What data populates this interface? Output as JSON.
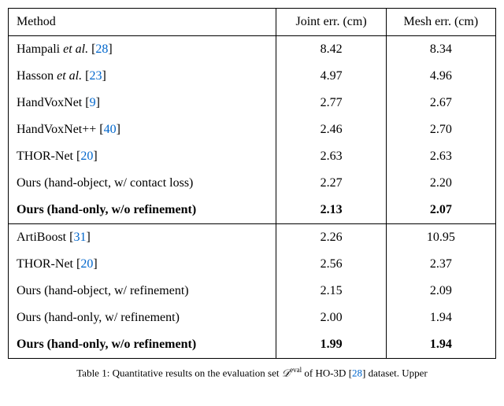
{
  "columns": {
    "method": "Method",
    "joint": "Joint err. (cm)",
    "mesh": "Mesh err. (cm)"
  },
  "group1": [
    {
      "name": "Hampali ",
      "ital": "et al.",
      "cite": "28",
      "joint": "8.42",
      "mesh": "8.34",
      "bold": false
    },
    {
      "name": "Hasson ",
      "ital": "et al.",
      "cite": "23",
      "joint": "4.97",
      "mesh": "4.96",
      "bold": false
    },
    {
      "name": "HandVoxNet ",
      "ital": "",
      "cite": "9",
      "joint": "2.77",
      "mesh": "2.67",
      "bold": false
    },
    {
      "name": "HandVoxNet++ ",
      "ital": "",
      "cite": "40",
      "joint": "2.46",
      "mesh": "2.70",
      "bold": false
    },
    {
      "name": "THOR-Net ",
      "ital": "",
      "cite": "20",
      "joint": "2.63",
      "mesh": "2.63",
      "bold": false
    },
    {
      "name": "Ours (hand-object, w/ contact loss)",
      "ital": "",
      "cite": "",
      "joint": "2.27",
      "mesh": "2.20",
      "bold": false
    },
    {
      "name": "Ours (hand-only, w/o refinement)",
      "ital": "",
      "cite": "",
      "joint": "2.13",
      "mesh": "2.07",
      "bold": true
    }
  ],
  "group2": [
    {
      "name": "ArtiBoost ",
      "ital": "",
      "cite": "31",
      "joint": "2.26",
      "mesh": "10.95",
      "bold": false
    },
    {
      "name": "THOR-Net ",
      "ital": "",
      "cite": "20",
      "joint": "2.56",
      "mesh": "2.37",
      "bold": false
    },
    {
      "name": "Ours (hand-object, w/ refinement)",
      "ital": "",
      "cite": "",
      "joint": "2.15",
      "mesh": "2.09",
      "bold": false
    },
    {
      "name": "Ours (hand-only, w/ refinement)",
      "ital": "",
      "cite": "",
      "joint": "2.00",
      "mesh": "1.94",
      "bold": false
    },
    {
      "name": "Ours (hand-only, w/o refinement)",
      "ital": "",
      "cite": "",
      "joint": "1.99",
      "mesh": "1.94",
      "bold": true
    }
  ],
  "caption": {
    "label": "Table 1:",
    "pre": "Quantitative results on the evaluation set ",
    "sym": "𝒟",
    "sup": "eval",
    "mid": " of HO-3D ",
    "cite": "28",
    "post": " dataset. Upper"
  },
  "style": {
    "cite_color": "#0066cc",
    "font_size_body": 16,
    "font_size_caption": 13
  }
}
